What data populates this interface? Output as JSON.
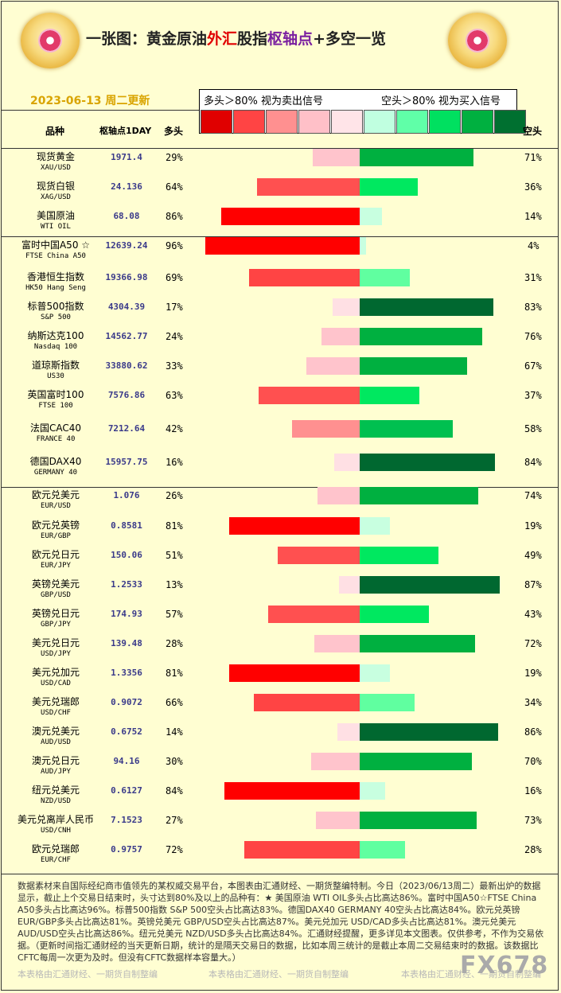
{
  "header": {
    "title_parts": [
      "一张图：黄金原油",
      "外汇",
      "股指",
      "枢轴点",
      "+多空一览"
    ],
    "date": "2023-06-13 周二更新",
    "legend_left": "多头＞80% 视为卖出信号",
    "legend_right": "空头＞80% 视为买入信号",
    "legend_colors": [
      "#e00000",
      "#ff4444",
      "#ff9090",
      "#ffc0c8",
      "#ffe4e8",
      "#c0ffe0",
      "#60ffa8",
      "#00e060",
      "#00b040",
      "#007030"
    ],
    "col_name": "品种",
    "col_pivot": "枢轴点1DAY",
    "col_long": "多头",
    "col_short": "空头"
  },
  "colors": {
    "long_ranges": [
      [
        "#ffe0e4",
        20
      ],
      [
        "#ffc4cc",
        35
      ],
      [
        "#ff9090",
        50
      ],
      [
        "#ff5050",
        65
      ],
      [
        "#ff4444",
        80
      ],
      [
        "#ff0000",
        100
      ]
    ],
    "short_ranges": [
      [
        "#c8ffe0",
        20
      ],
      [
        "#60ffa0",
        35
      ],
      [
        "#00e860",
        50
      ],
      [
        "#00c050",
        65
      ],
      [
        "#00b040",
        80
      ],
      [
        "#006830",
        100
      ]
    ]
  },
  "chart_data": {
    "type": "bar",
    "series": [
      {
        "name": "多头",
        "unit": "%"
      },
      {
        "name": "空头",
        "unit": "%"
      }
    ],
    "rows": [
      {
        "cn": "现货黄金",
        "en": "XAU/USD",
        "pivot": "1971.4",
        "long": 29,
        "short": 71
      },
      {
        "cn": "现货白银",
        "en": "XAG/USD",
        "pivot": "24.136",
        "long": 64,
        "short": 36
      },
      {
        "cn": "美国原油",
        "en": "WTI OIL",
        "pivot": "68.08",
        "long": 86,
        "short": 14
      },
      {
        "cn": "富时中国A50 ☆",
        "en": "FTSE China A50",
        "pivot": "12639.24",
        "long": 96,
        "short": 4
      },
      {
        "cn": "香港恒生指数",
        "en": "HK50 Hang Seng",
        "pivot": "19366.98",
        "long": 69,
        "short": 31
      },
      {
        "cn": "标普500指数",
        "en": "S&P 500",
        "pivot": "4304.39",
        "long": 17,
        "short": 83
      },
      {
        "cn": "纳斯达克100",
        "en": "Nasdaq 100",
        "pivot": "14562.77",
        "long": 24,
        "short": 76
      },
      {
        "cn": "道琼斯指数",
        "en": "US30",
        "pivot": "33880.62",
        "long": 33,
        "short": 67
      },
      {
        "cn": "英国富时100",
        "en": "FTSE 100",
        "pivot": "7576.86",
        "long": 63,
        "short": 37
      },
      {
        "cn": "法国CAC40",
        "en": "FRANCE 40",
        "pivot": "7212.64",
        "long": 42,
        "short": 58
      },
      {
        "cn": "德国DAX40",
        "en": "GERMANY 40",
        "pivot": "15957.75",
        "long": 16,
        "short": 84
      },
      {
        "cn": "欧元兑美元",
        "en": "EUR/USD",
        "pivot": "1.076",
        "long": 26,
        "short": 74
      },
      {
        "cn": "欧元兑英镑",
        "en": "EUR/GBP",
        "pivot": "0.8581",
        "long": 81,
        "short": 19
      },
      {
        "cn": "欧元兑日元",
        "en": "EUR/JPY",
        "pivot": "150.06",
        "long": 51,
        "short": 49
      },
      {
        "cn": "英镑兑美元",
        "en": "GBP/USD",
        "pivot": "1.2533",
        "long": 13,
        "short": 87
      },
      {
        "cn": "英镑兑日元",
        "en": "GBP/JPY",
        "pivot": "174.93",
        "long": 57,
        "short": 43
      },
      {
        "cn": "美元兑日元",
        "en": "USD/JPY",
        "pivot": "139.48",
        "long": 28,
        "short": 72
      },
      {
        "cn": "美元兑加元",
        "en": "USD/CAD",
        "pivot": "1.3356",
        "long": 81,
        "short": 19
      },
      {
        "cn": "美元兑瑞郎",
        "en": "USD/CHF",
        "pivot": "0.9072",
        "long": 66,
        "short": 34
      },
      {
        "cn": "澳元兑美元",
        "en": "AUD/USD",
        "pivot": "0.6752",
        "long": 14,
        "short": 86
      },
      {
        "cn": "澳元兑日元",
        "en": "AUD/JPY",
        "pivot": "94.16",
        "long": 30,
        "short": 70
      },
      {
        "cn": "纽元兑美元",
        "en": "NZD/USD",
        "pivot": "0.6127",
        "long": 84,
        "short": 16
      },
      {
        "cn": "美元兑离岸人民币",
        "en": "USD/CNH",
        "pivot": "7.1523",
        "long": 27,
        "short": 73
      },
      {
        "cn": "欧元兑瑞郎",
        "en": "EUR/CHF",
        "pivot": "0.9757",
        "long": 72,
        "short": 28
      }
    ]
  },
  "footer": {
    "text": "数据素材来自国际经纪商市值领先的某权威交易平台，本图表由汇通财经、一期货整编特制。今日（2023/06/13周二）最新出炉的数据显示，截止上个交易日结束时，头寸达到80%及以上的品种有：★ 美国原油 WTI OIL多头占比高达86%。富时中国A50☆FTSE China A50多头占比高达96%。标普500指数 S&P 500空头占比高达83%。德国DAX40 GERMANY 40空头占比高达84%。欧元兑英镑 EUR/GBP多头占比高达81%。英镑兑美元 GBP/USD空头占比高达87%。美元兑加元 USD/CAD多头占比高达81%。澳元兑美元 AUD/USD空头占比高达86%。纽元兑美元 NZD/USD多头占比高达84%。汇通财经提醒，更多详见本文图表。仅供参考，不作为交易依据。（更新时间指汇通财经的当天更新日期，统计的是隔天交易日的数据，比如本周三统计的是截止本周二交易结束时的数据。该数据比CFTC每周一次更为及时。但没有CFTC数据样本容量大。）",
    "watermark": "本表格由汇通财经、一期货自制整编",
    "brand": "FX678"
  }
}
